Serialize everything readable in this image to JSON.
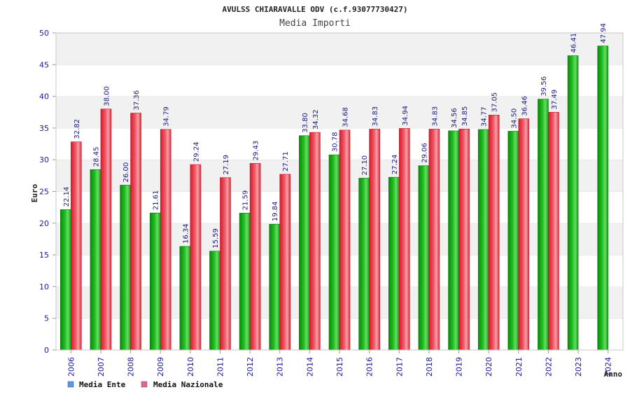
{
  "chart_data": {
    "type": "bar",
    "title": "AVULSS CHIARAVALLE ODV (c.f.93077730427)",
    "subtitle": "Media Importi",
    "xlabel": "Anno",
    "ylabel": "Euro",
    "ylim": [
      0,
      50
    ],
    "yticks": [
      0,
      5,
      10,
      15,
      20,
      25,
      30,
      35,
      40,
      45,
      50
    ],
    "grid": "horizontal bands",
    "legend_position": "bottom-left",
    "categories": [
      "2006",
      "2007",
      "2008",
      "2009",
      "2010",
      "2011",
      "2012",
      "2013",
      "2014",
      "2015",
      "2016",
      "2017",
      "2018",
      "2019",
      "2020",
      "2021",
      "2022",
      "2023",
      "2024"
    ],
    "series": [
      {
        "name": "Media Ente",
        "color": "#22bb22",
        "legend_color": "#5599ee",
        "values": [
          22.14,
          28.45,
          26.0,
          21.61,
          16.34,
          15.59,
          21.59,
          19.84,
          33.8,
          30.78,
          27.1,
          27.24,
          29.06,
          34.56,
          34.77,
          34.5,
          39.56,
          46.41,
          47.94
        ],
        "labels": [
          "22.14",
          "28.45",
          "26.00",
          "21.61",
          "16.34",
          "15.59",
          "21.59",
          "19.84",
          "33.80",
          "30.78",
          "27.10",
          "27.24",
          "29.06",
          "34.56",
          "34.77",
          "34.50",
          "39.56",
          "46.41",
          "47.94"
        ]
      },
      {
        "name": "Media Nazionale",
        "color": "#ee3344",
        "legend_color": "#dd6699",
        "values": [
          32.82,
          38.0,
          37.36,
          34.79,
          29.24,
          27.19,
          29.43,
          27.71,
          34.32,
          34.68,
          34.83,
          34.94,
          34.83,
          34.85,
          37.05,
          36.46,
          37.49,
          null,
          null
        ],
        "labels": [
          "32.82",
          "38.00",
          "37.36",
          "34.79",
          "29.24",
          "27.19",
          "29.43",
          "27.71",
          "34.32",
          "34.68",
          "34.83",
          "34.94",
          "34.83",
          "34.85",
          "37.05",
          "36.46",
          "37.49",
          null,
          null
        ]
      }
    ]
  }
}
